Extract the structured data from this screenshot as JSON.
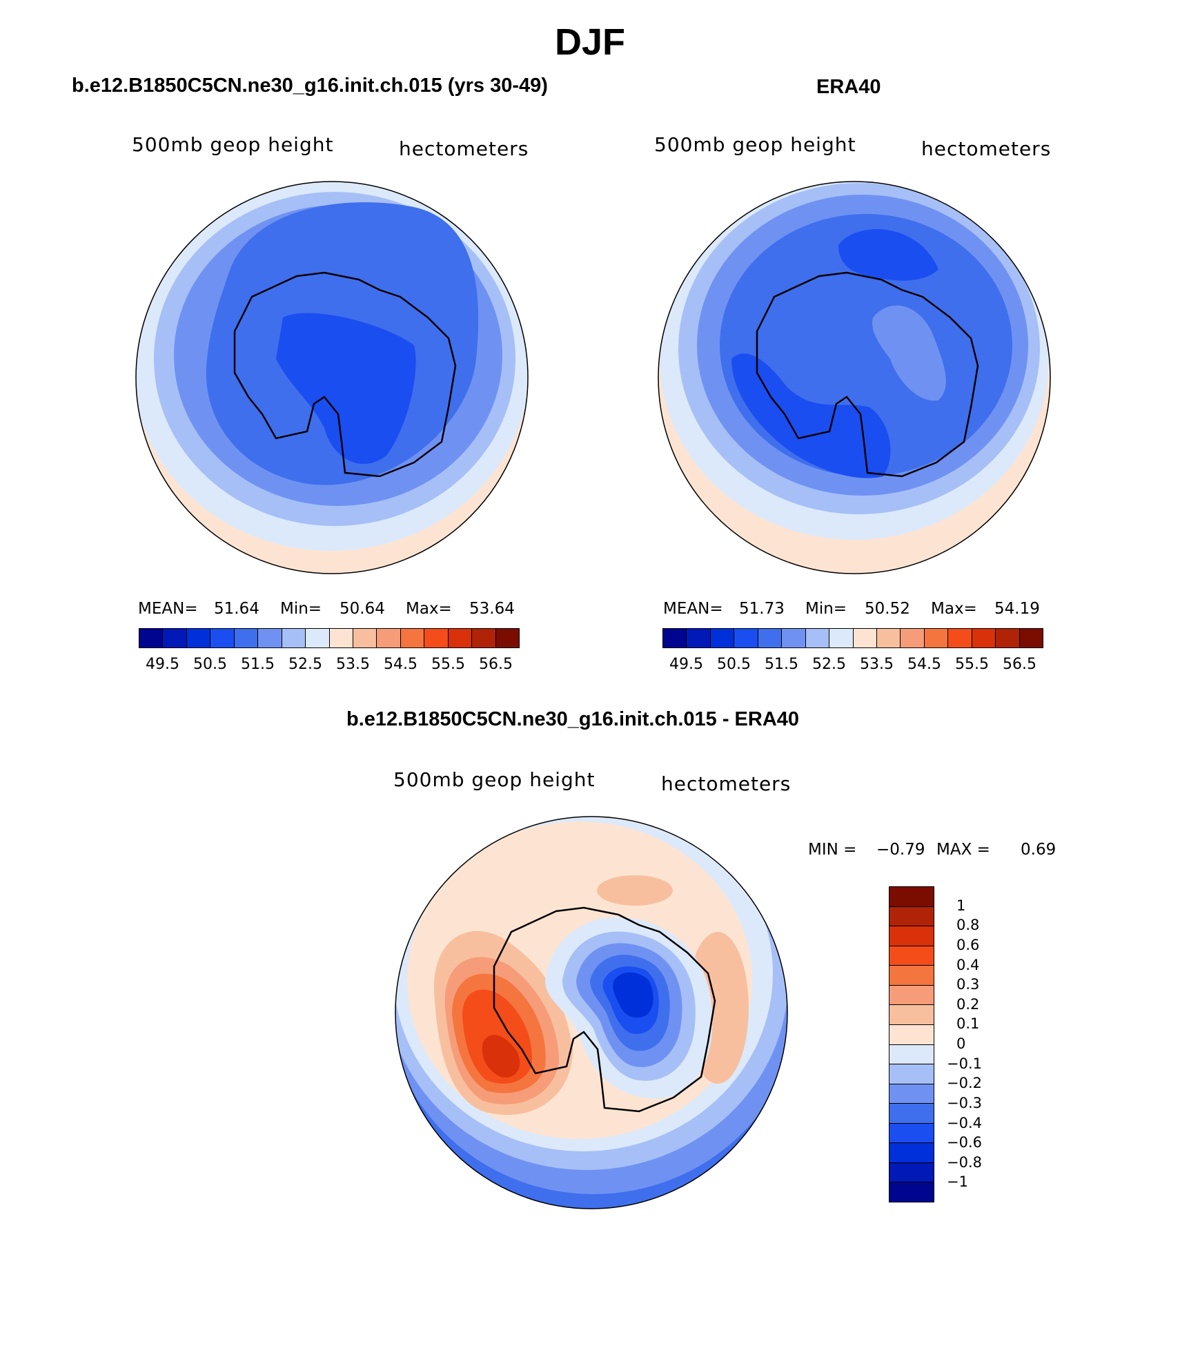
{
  "figure": {
    "title": "DJF"
  },
  "palettes": {
    "abs": [
      "#00058f",
      "#0019b7",
      "#0030d9",
      "#1a4ef0",
      "#3f6fec",
      "#6f92f2",
      "#a6bff7",
      "#dce9fa",
      "#fde4d2",
      "#f8bf9f",
      "#f69c78",
      "#f5753f",
      "#f44d1a",
      "#d93109",
      "#b02306",
      "#7b0d00"
    ],
    "diff": [
      "#00058f",
      "#0019b7",
      "#0030d9",
      "#1a4ef0",
      "#3f6fec",
      "#6f92f2",
      "#a6bff7",
      "#dce9fa",
      "#fde4d2",
      "#f8bf9f",
      "#f69c78",
      "#f5753f",
      "#f44d1a",
      "#d93109",
      "#b02306",
      "#7b0d00"
    ]
  },
  "panels": [
    {
      "title": "b.e12.B1850C5CN.ne30_g16.init.ch.015 (yrs 30-49)",
      "variable": "500mb geop height",
      "units": "hectometers",
      "stats": {
        "mean_label": "MEAN=",
        "mean": "51.64",
        "min_label": "Min=",
        "min": "50.64",
        "max_label": "Max=",
        "max": "53.64"
      },
      "colorbar_ticks": [
        "49.5",
        "50.5",
        "51.5",
        "52.5",
        "53.5",
        "54.5",
        "55.5",
        "56.5"
      ]
    },
    {
      "title": "ERA40",
      "variable": "500mb geop height",
      "units": "hectometers",
      "stats": {
        "mean_label": "MEAN=",
        "mean": "51.73",
        "min_label": "Min=",
        "min": "50.52",
        "max_label": "Max=",
        "max": "54.19"
      },
      "colorbar_ticks": [
        "49.5",
        "50.5",
        "51.5",
        "52.5",
        "53.5",
        "54.5",
        "55.5",
        "56.5"
      ]
    },
    {
      "title": "b.e12.B1850C5CN.ne30_g16.init.ch.015 - ERA40",
      "variable": "500mb geop height",
      "units": "hectometers",
      "stats": {
        "min_label": "MIN =",
        "min": "−0.79",
        "max_label": "MAX =",
        "max": "0.69"
      },
      "colorbar_ticks": [
        "1",
        "0.8",
        "0.6",
        "0.4",
        "0.3",
        "0.2",
        "0.1",
        "0",
        "−0.1",
        "−0.2",
        "−0.3",
        "−0.4",
        "−0.6",
        "−0.8",
        "−1"
      ]
    }
  ],
  "chart_data": [
    {
      "type": "heatmap",
      "projection": "south polar stereographic",
      "title": "b.e12.B1850C5CN.ne30_g16.init.ch.015 (yrs 30-49)",
      "variable": "500mb geop height",
      "units": "hectometers",
      "mean": 51.64,
      "min": 50.64,
      "max": 53.64,
      "levels": [
        49.5,
        50,
        50.5,
        51,
        51.5,
        52,
        52.5,
        53,
        53.5,
        54,
        54.5,
        55,
        55.5,
        56,
        56.5
      ]
    },
    {
      "type": "heatmap",
      "projection": "south polar stereographic",
      "title": "ERA40",
      "variable": "500mb geop height",
      "units": "hectometers",
      "mean": 51.73,
      "min": 50.52,
      "max": 54.19,
      "levels": [
        49.5,
        50,
        50.5,
        51,
        51.5,
        52,
        52.5,
        53,
        53.5,
        54,
        54.5,
        55,
        55.5,
        56,
        56.5
      ]
    },
    {
      "type": "heatmap",
      "projection": "south polar stereographic",
      "title": "b.e12.B1850C5CN.ne30_g16.init.ch.015 - ERA40",
      "variable": "500mb geop height",
      "units": "hectometers",
      "min": -0.79,
      "max": 0.69,
      "levels": [
        -1,
        -0.8,
        -0.6,
        -0.4,
        -0.3,
        -0.2,
        -0.1,
        0,
        0.1,
        0.2,
        0.3,
        0.4,
        0.6,
        0.8,
        1
      ]
    }
  ]
}
